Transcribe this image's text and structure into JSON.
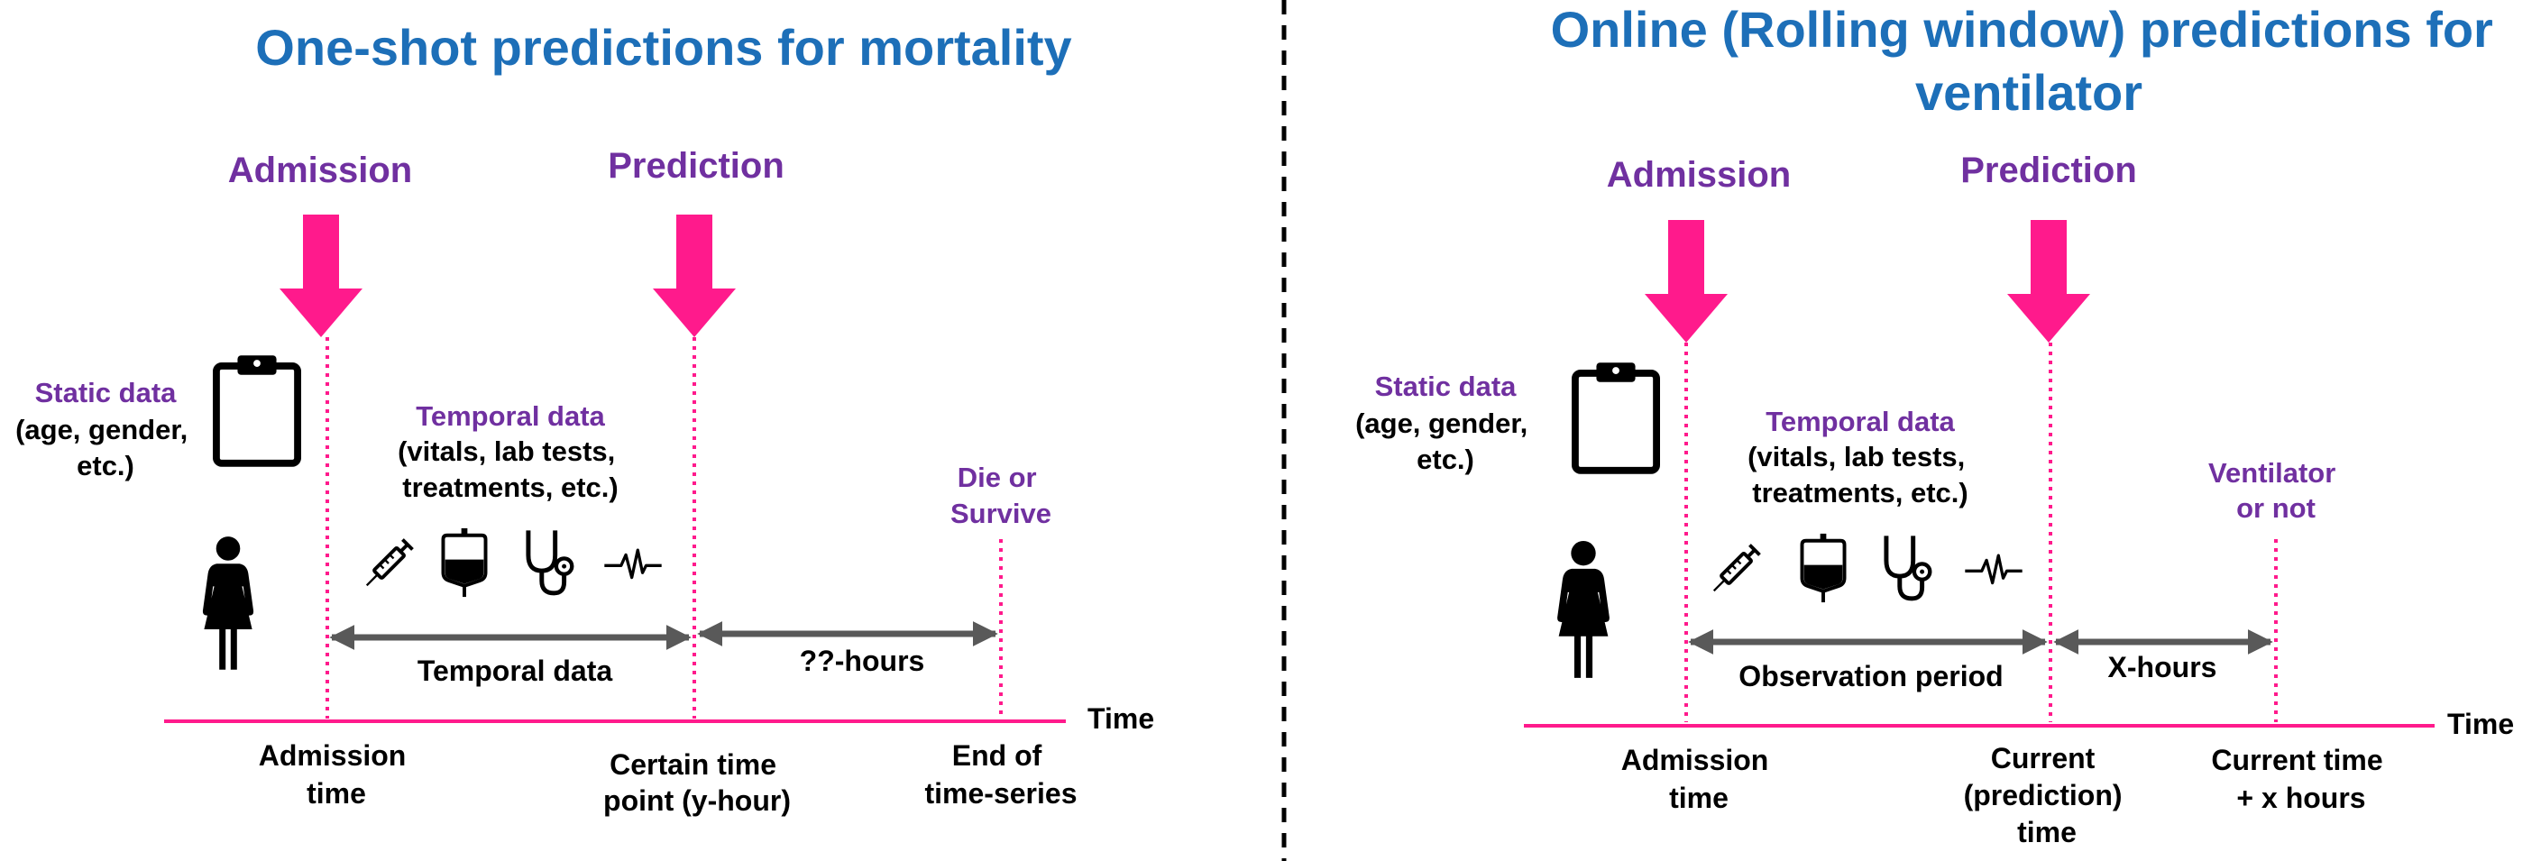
{
  "left": {
    "title": "One-shot predictions for mortality",
    "admission": "Admission",
    "prediction": "Prediction",
    "static_title": "Static data",
    "static_desc": [
      "(age, gender,",
      "etc.)"
    ],
    "temporal_title": "Temporal data",
    "temporal_desc": [
      "(vitals, lab tests,",
      "treatments, etc.)"
    ],
    "outcome": [
      "Die or",
      "Survive"
    ],
    "span1": "Temporal data",
    "span2": "??-hours",
    "time": "Time",
    "tick1": [
      "Admission",
      "time"
    ],
    "tick2": [
      "Certain time",
      "point (y-hour)"
    ],
    "tick3": [
      "End of",
      "time-series"
    ]
  },
  "right": {
    "title": [
      "Online (Rolling window) predictions for",
      "ventilator"
    ],
    "admission": "Admission",
    "prediction": "Prediction",
    "static_title": "Static data",
    "static_desc": [
      "(age, gender,",
      "etc.)"
    ],
    "temporal_title": "Temporal data",
    "temporal_desc": [
      "(vitals, lab tests,",
      "treatments, etc.)"
    ],
    "outcome": [
      "Ventilator",
      "or not"
    ],
    "span1": "Observation period",
    "span2": "X-hours",
    "time": "Time",
    "tick1": [
      "Admission",
      "time"
    ],
    "tick2": [
      "Current",
      "(prediction)",
      "time"
    ],
    "tick3": [
      "Current time",
      "+ x hours"
    ]
  },
  "icons": [
    "clipboard-icon",
    "person-icon",
    "syringe-icon",
    "iv-bag-icon",
    "stethoscope-icon",
    "heartbeat-icon"
  ],
  "colors": {
    "title": "#1d6fb8",
    "purple": "#7030a0",
    "pink": "#ff1a8c",
    "gray": "#595959"
  }
}
